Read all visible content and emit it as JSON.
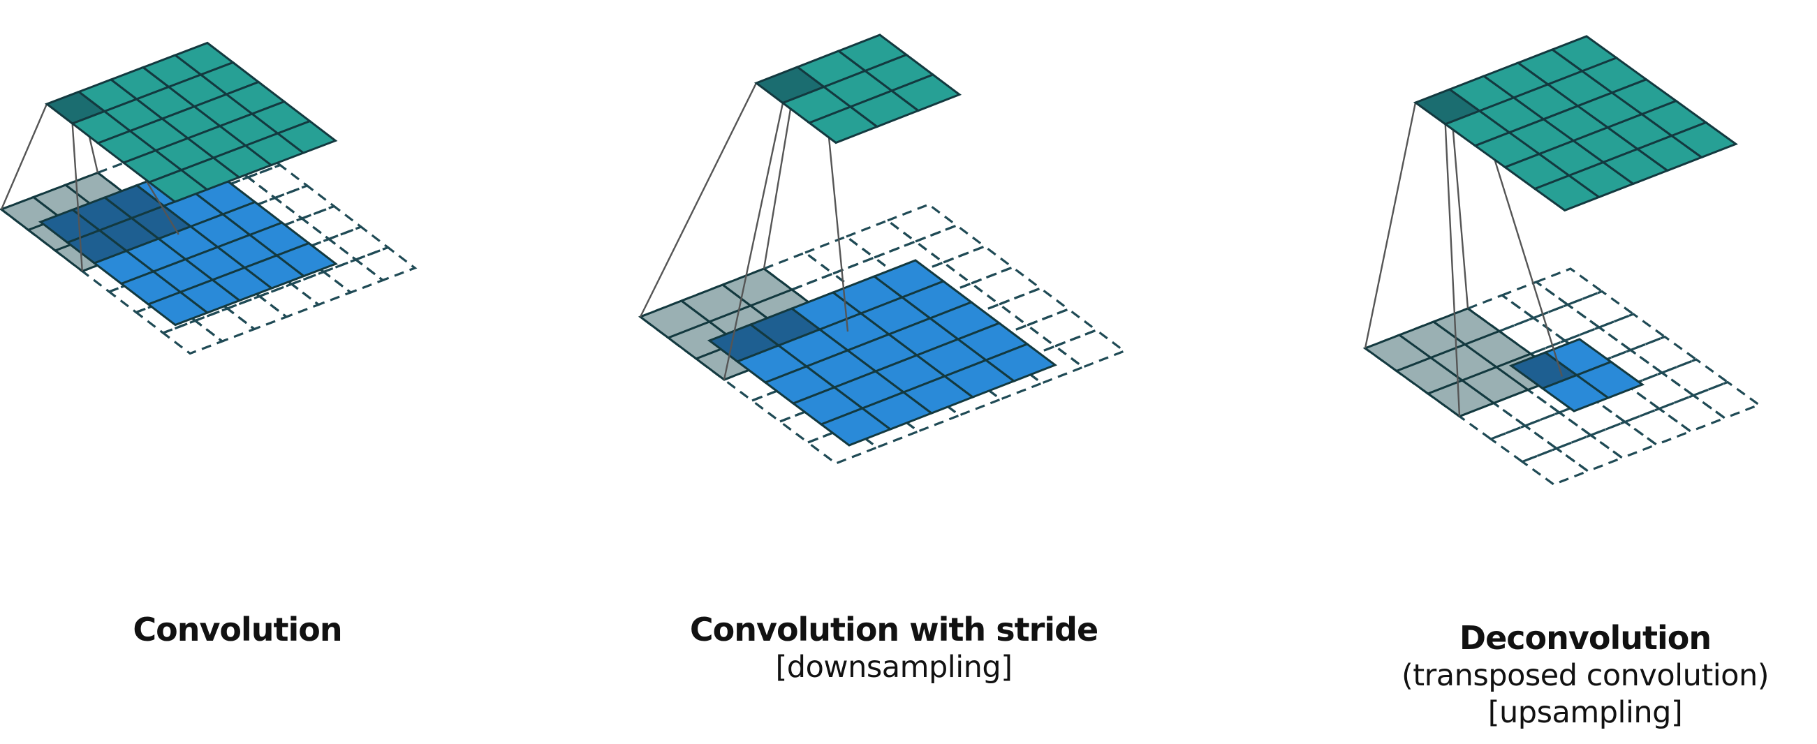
{
  "colors": {
    "output_fill": "#27a095",
    "output_active": "#1b6d70",
    "input_fill": "#2a8ad8",
    "input_active": "#1e5f91",
    "kernel_fill": "#9ab0b3",
    "grid_line": "#13393f",
    "dashed_line": "#1f4a55",
    "connector": "#555555"
  },
  "panels": [
    {
      "title": "Convolution",
      "subtitle_1": "",
      "subtitle_2": "",
      "output_grid_size": 5,
      "padded_grid_size": 7,
      "input_grid_size": 5,
      "kernel_size": 3
    },
    {
      "title": "Convolution with stride",
      "subtitle_1": "[downsampling]",
      "subtitle_2": "",
      "output_grid_size": 3,
      "padded_grid_size": 7,
      "input_grid_size": 5,
      "kernel_size": 3
    },
    {
      "title": "Deconvolution",
      "subtitle_1": "(transposed convolution)",
      "subtitle_2": "[upsampling]",
      "output_grid_size": 5,
      "padded_grid_size": 6,
      "input_grid_size": 2,
      "kernel_size": 3
    }
  ]
}
